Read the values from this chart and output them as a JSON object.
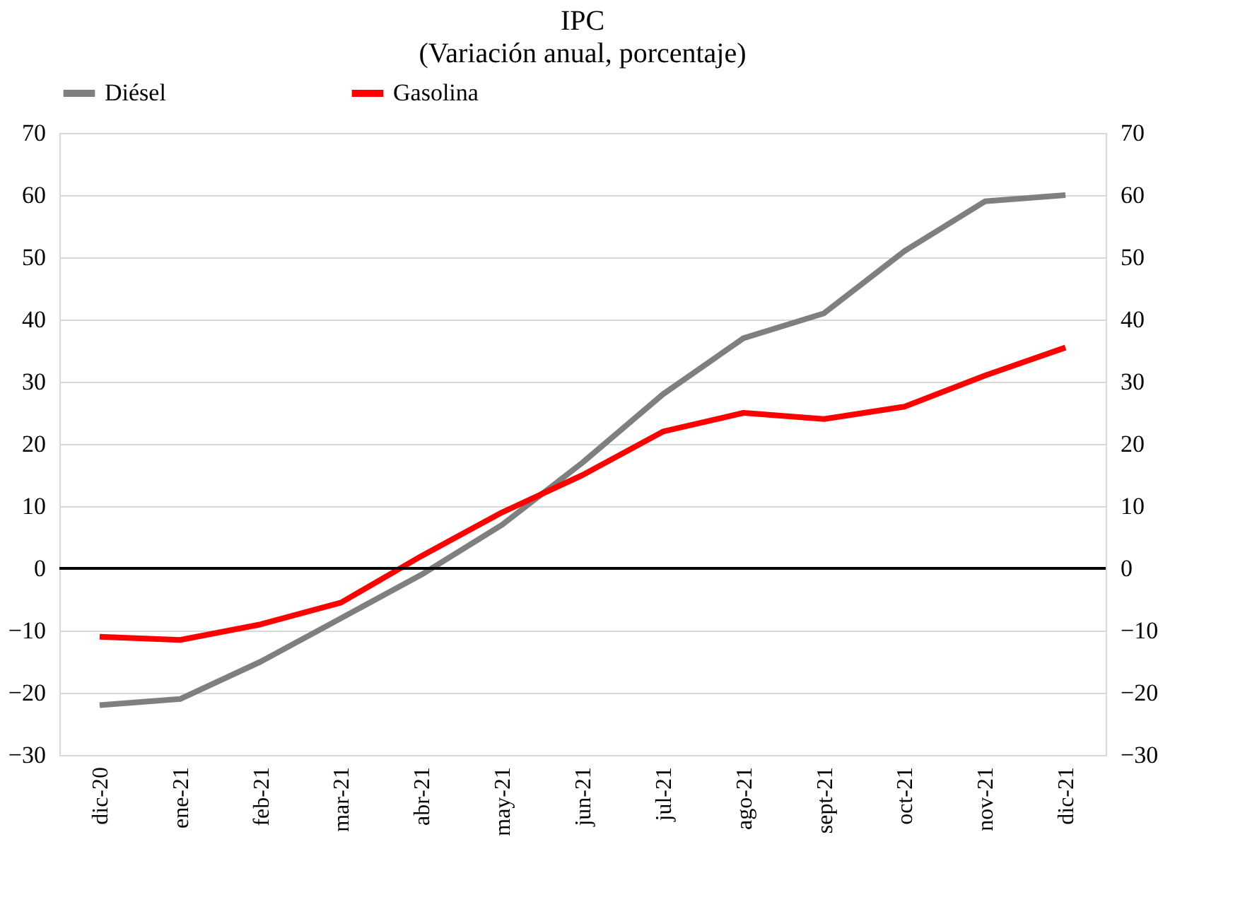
{
  "chart_data": {
    "type": "line",
    "title": "IPC",
    "subtitle": "(Variación anual, porcentaje)",
    "categories": [
      "dic-20",
      "ene-21",
      "feb-21",
      "mar-21",
      "abr-21",
      "may-21",
      "jun-21",
      "jul-21",
      "ago-21",
      "sept-21",
      "oct-21",
      "nov-21",
      "dic-21"
    ],
    "series": [
      {
        "name": "Diésel",
        "color": "#7f7f7f",
        "values": [
          -22,
          -21,
          -15,
          -8,
          -1,
          7,
          17,
          28,
          37,
          41,
          51,
          59,
          60
        ]
      },
      {
        "name": "Gasolina",
        "color": "#ff0000",
        "values": [
          -11,
          -11.5,
          -9,
          -5.5,
          2,
          9,
          15,
          22,
          25,
          24,
          26,
          31,
          35.5
        ]
      }
    ],
    "ylim": [
      -30,
      70
    ],
    "yticks": [
      -30,
      -20,
      -10,
      0,
      10,
      20,
      30,
      40,
      50,
      60,
      70
    ],
    "y2lim": [
      -30,
      70
    ],
    "y2ticks": [
      -30,
      -20,
      -10,
      0,
      10,
      20,
      30,
      40,
      50,
      60,
      70
    ],
    "ref_lines": [
      {
        "axis": "y",
        "value": 0,
        "color": "#000000"
      }
    ],
    "grid": "y",
    "legend": "top",
    "marker": "none",
    "line_style": "solid"
  }
}
